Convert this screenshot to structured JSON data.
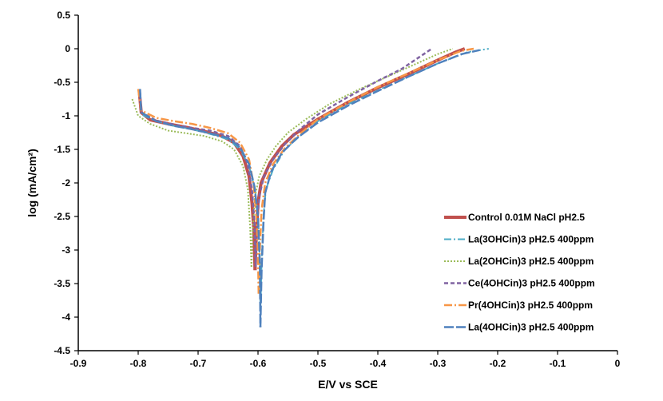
{
  "chart_data": {
    "type": "line",
    "title": "",
    "xlabel": "E/V vs SCE",
    "ylabel": "log (mA/cm²)",
    "xlim": [
      -0.9,
      0
    ],
    "ylim": [
      -4.5,
      0.5
    ],
    "x_ticks": [
      -0.9,
      -0.8,
      -0.7,
      -0.6,
      -0.5,
      -0.4,
      -0.3,
      -0.2,
      -0.1,
      0
    ],
    "x_tick_labels": [
      "-0.9",
      "-0.8",
      "-0.7",
      "-0.6",
      "-0.5",
      "-0.4",
      "-0.3",
      "-0.2",
      "-0.1",
      "0"
    ],
    "y_ticks": [
      0.5,
      0,
      -0.5,
      -1,
      -1.5,
      -2,
      -2.5,
      -3,
      -3.5,
      -4,
      -4.5
    ],
    "y_tick_labels": [
      "0.5",
      "0",
      "-0.5",
      "-1",
      "-1.5",
      "-2",
      "-2.5",
      "-3",
      "-3.5",
      "-4",
      "-4.5"
    ],
    "grid": false,
    "legend_position": "bottom-right",
    "series": [
      {
        "name": "Control 0.01M NaCl pH2.5",
        "color": "#c0504d",
        "style": "solid-thick",
        "cathodic": [
          [
            -0.798,
            -0.65
          ],
          [
            -0.795,
            -0.95
          ],
          [
            -0.78,
            -1.06
          ],
          [
            -0.75,
            -1.12
          ],
          [
            -0.72,
            -1.17
          ],
          [
            -0.69,
            -1.23
          ],
          [
            -0.66,
            -1.3
          ],
          [
            -0.64,
            -1.4
          ],
          [
            -0.625,
            -1.6
          ],
          [
            -0.615,
            -1.9
          ],
          [
            -0.61,
            -2.3
          ],
          [
            -0.607,
            -2.7
          ],
          [
            -0.605,
            -3.3
          ]
        ],
        "anodic": [
          [
            -0.605,
            -3.3
          ],
          [
            -0.603,
            -2.8
          ],
          [
            -0.6,
            -2.3
          ],
          [
            -0.595,
            -2.0
          ],
          [
            -0.58,
            -1.7
          ],
          [
            -0.56,
            -1.45
          ],
          [
            -0.54,
            -1.28
          ],
          [
            -0.5,
            -1.05
          ],
          [
            -0.45,
            -0.8
          ],
          [
            -0.4,
            -0.58
          ],
          [
            -0.35,
            -0.38
          ],
          [
            -0.3,
            -0.17
          ],
          [
            -0.27,
            -0.05
          ],
          [
            -0.255,
            0.0
          ]
        ]
      },
      {
        "name": "La(3OHCin)3 pH2.5 400ppm",
        "color": "#4bacc6",
        "style": "dash-dot",
        "cathodic": [
          [
            -0.797,
            -0.6
          ],
          [
            -0.795,
            -0.98
          ],
          [
            -0.77,
            -1.08
          ],
          [
            -0.74,
            -1.15
          ],
          [
            -0.71,
            -1.2
          ],
          [
            -0.68,
            -1.27
          ],
          [
            -0.65,
            -1.35
          ],
          [
            -0.63,
            -1.5
          ],
          [
            -0.615,
            -1.75
          ],
          [
            -0.605,
            -2.1
          ],
          [
            -0.6,
            -2.5
          ],
          [
            -0.597,
            -3.1
          ],
          [
            -0.596,
            -3.9
          ]
        ],
        "anodic": [
          [
            -0.596,
            -3.9
          ],
          [
            -0.594,
            -3.2
          ],
          [
            -0.591,
            -2.5
          ],
          [
            -0.587,
            -2.1
          ],
          [
            -0.575,
            -1.8
          ],
          [
            -0.555,
            -1.5
          ],
          [
            -0.53,
            -1.3
          ],
          [
            -0.5,
            -1.08
          ],
          [
            -0.45,
            -0.83
          ],
          [
            -0.4,
            -0.62
          ],
          [
            -0.35,
            -0.42
          ],
          [
            -0.3,
            -0.22
          ],
          [
            -0.25,
            -0.05
          ],
          [
            -0.215,
            0.0
          ]
        ]
      },
      {
        "name": "La(2OHCin)3 pH2.5 400ppm",
        "color": "#9bbb59",
        "style": "dotted",
        "cathodic": [
          [
            -0.81,
            -0.75
          ],
          [
            -0.8,
            -1.0
          ],
          [
            -0.78,
            -1.12
          ],
          [
            -0.75,
            -1.22
          ],
          [
            -0.72,
            -1.26
          ],
          [
            -0.69,
            -1.3
          ],
          [
            -0.66,
            -1.38
          ],
          [
            -0.64,
            -1.5
          ],
          [
            -0.625,
            -1.75
          ],
          [
            -0.617,
            -2.1
          ],
          [
            -0.613,
            -2.7
          ],
          [
            -0.611,
            -3.25
          ]
        ],
        "anodic": [
          [
            -0.611,
            -3.25
          ],
          [
            -0.609,
            -2.7
          ],
          [
            -0.605,
            -2.2
          ],
          [
            -0.598,
            -1.9
          ],
          [
            -0.585,
            -1.65
          ],
          [
            -0.57,
            -1.45
          ],
          [
            -0.55,
            -1.25
          ],
          [
            -0.52,
            -1.05
          ],
          [
            -0.48,
            -0.82
          ],
          [
            -0.43,
            -0.6
          ],
          [
            -0.38,
            -0.4
          ],
          [
            -0.33,
            -0.2
          ],
          [
            -0.3,
            -0.08
          ],
          [
            -0.275,
            0.0
          ]
        ]
      },
      {
        "name": "Ce(4OHCin)3 pH2.5 400ppm",
        "color": "#8064a2",
        "style": "dashed",
        "cathodic": [
          [
            -0.797,
            -0.65
          ],
          [
            -0.795,
            -0.95
          ],
          [
            -0.77,
            -1.07
          ],
          [
            -0.74,
            -1.13
          ],
          [
            -0.71,
            -1.18
          ],
          [
            -0.68,
            -1.22
          ],
          [
            -0.65,
            -1.3
          ],
          [
            -0.63,
            -1.45
          ],
          [
            -0.618,
            -1.7
          ],
          [
            -0.61,
            -2.1
          ],
          [
            -0.606,
            -2.6
          ],
          [
            -0.604,
            -3.25
          ]
        ],
        "anodic": [
          [
            -0.604,
            -3.25
          ],
          [
            -0.602,
            -2.7
          ],
          [
            -0.598,
            -2.2
          ],
          [
            -0.59,
            -1.9
          ],
          [
            -0.575,
            -1.65
          ],
          [
            -0.555,
            -1.42
          ],
          [
            -0.53,
            -1.2
          ],
          [
            -0.5,
            -0.98
          ],
          [
            -0.45,
            -0.72
          ],
          [
            -0.4,
            -0.48
          ],
          [
            -0.36,
            -0.3
          ],
          [
            -0.33,
            -0.12
          ],
          [
            -0.31,
            0.0
          ]
        ]
      },
      {
        "name": "Pr(4OHCin)3 pH2.5 400ppm",
        "color": "#f79646",
        "style": "long-dash-dot",
        "cathodic": [
          [
            -0.8,
            -0.6
          ],
          [
            -0.795,
            -0.92
          ],
          [
            -0.77,
            -1.03
          ],
          [
            -0.74,
            -1.08
          ],
          [
            -0.71,
            -1.12
          ],
          [
            -0.68,
            -1.18
          ],
          [
            -0.65,
            -1.26
          ],
          [
            -0.63,
            -1.4
          ],
          [
            -0.615,
            -1.65
          ],
          [
            -0.607,
            -2.05
          ],
          [
            -0.602,
            -2.6
          ],
          [
            -0.6,
            -3.1
          ],
          [
            -0.599,
            -3.65
          ]
        ],
        "anodic": [
          [
            -0.599,
            -3.65
          ],
          [
            -0.597,
            -3.0
          ],
          [
            -0.594,
            -2.4
          ],
          [
            -0.588,
            -2.0
          ],
          [
            -0.575,
            -1.72
          ],
          [
            -0.555,
            -1.48
          ],
          [
            -0.53,
            -1.27
          ],
          [
            -0.5,
            -1.05
          ],
          [
            -0.45,
            -0.8
          ],
          [
            -0.4,
            -0.57
          ],
          [
            -0.35,
            -0.37
          ],
          [
            -0.3,
            -0.17
          ],
          [
            -0.26,
            -0.03
          ],
          [
            -0.24,
            0.0
          ]
        ]
      },
      {
        "name": "La(4OHCin)3 pH2.5 400ppm",
        "color": "#4f81bd",
        "style": "long-dash",
        "cathodic": [
          [
            -0.797,
            -0.6
          ],
          [
            -0.795,
            -0.95
          ],
          [
            -0.77,
            -1.08
          ],
          [
            -0.74,
            -1.15
          ],
          [
            -0.71,
            -1.2
          ],
          [
            -0.68,
            -1.26
          ],
          [
            -0.65,
            -1.33
          ],
          [
            -0.63,
            -1.47
          ],
          [
            -0.615,
            -1.72
          ],
          [
            -0.606,
            -2.05
          ],
          [
            -0.6,
            -2.5
          ],
          [
            -0.597,
            -3.2
          ],
          [
            -0.596,
            -4.15
          ]
        ],
        "anodic": [
          [
            -0.596,
            -4.15
          ],
          [
            -0.594,
            -3.3
          ],
          [
            -0.591,
            -2.6
          ],
          [
            -0.588,
            -2.15
          ],
          [
            -0.578,
            -1.83
          ],
          [
            -0.56,
            -1.55
          ],
          [
            -0.535,
            -1.33
          ],
          [
            -0.5,
            -1.1
          ],
          [
            -0.45,
            -0.85
          ],
          [
            -0.4,
            -0.63
          ],
          [
            -0.35,
            -0.42
          ],
          [
            -0.3,
            -0.22
          ],
          [
            -0.26,
            -0.08
          ],
          [
            -0.23,
            -0.02
          ]
        ]
      }
    ]
  }
}
